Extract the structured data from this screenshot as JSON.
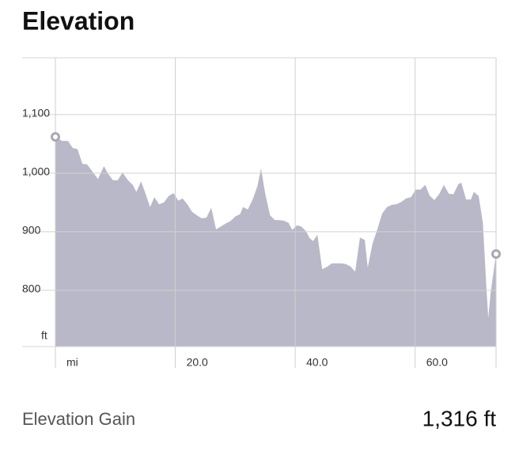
{
  "chart_data": {
    "type": "area",
    "title": "Elevation",
    "x_label": "mi",
    "y_label": "ft",
    "x": [
      0,
      1.1,
      2.1,
      2.9,
      3.7,
      4.5,
      5.3,
      6.1,
      7.1,
      8.1,
      8.8,
      9.6,
      10.4,
      11.2,
      12.1,
      12.9,
      13.5,
      14.3,
      15.0,
      15.8,
      16.5,
      17.3,
      18.1,
      18.9,
      19.7,
      20.5,
      21.2,
      22.0,
      22.8,
      23.6,
      24.4,
      25.2,
      26.0,
      26.8,
      27.6,
      28.4,
      29.2,
      30.0,
      30.8,
      31.3,
      32.1,
      32.9,
      33.7,
      34.3,
      35.0,
      35.8,
      36.6,
      37.3,
      38.1,
      38.9,
      39.5,
      40.3,
      41.0,
      41.8,
      42.4,
      43.0,
      43.7,
      44.5,
      45.3,
      46.1,
      46.9,
      47.7,
      48.4,
      49.2,
      50.0,
      50.8,
      51.6,
      52.1,
      52.9,
      53.7,
      54.5,
      55.3,
      56.1,
      56.9,
      57.7,
      58.5,
      59.3,
      60.1,
      60.9,
      61.7,
      62.4,
      63.2,
      64.0,
      64.8,
      65.6,
      66.4,
      67.2,
      67.7,
      68.5,
      69.3,
      69.8,
      70.6,
      71.3,
      71.9,
      72.2,
      72.6,
      73.5
    ],
    "values": [
      1062,
      1055,
      1055,
      1043,
      1041,
      1016,
      1015,
      1004,
      990,
      1012,
      999,
      988,
      988,
      1001,
      988,
      980,
      968,
      986,
      966,
      942,
      959,
      947,
      950,
      961,
      966,
      953,
      957,
      947,
      934,
      928,
      923,
      924,
      941,
      904,
      909,
      914,
      918,
      926,
      930,
      942,
      938,
      955,
      978,
      1008,
      965,
      928,
      920,
      920,
      919,
      915,
      903,
      911,
      909,
      901,
      889,
      884,
      895,
      836,
      840,
      846,
      846,
      846,
      845,
      841,
      832,
      890,
      886,
      839,
      880,
      904,
      931,
      942,
      946,
      947,
      951,
      957,
      959,
      972,
      972,
      980,
      962,
      954,
      964,
      980,
      965,
      964,
      981,
      984,
      955,
      955,
      968,
      961,
      915,
      803,
      753,
      796,
      862
    ],
    "color": "#b9b8c8",
    "xlim": [
      0,
      73.5
    ],
    "ylim": [
      704,
      1197
    ],
    "xticks": [
      {
        "value": 20,
        "label": "20.0"
      },
      {
        "value": 40,
        "label": "40.0"
      },
      {
        "value": 60,
        "label": "60.0"
      }
    ],
    "yticks": [
      800,
      900,
      {
        "value": 1000,
        "label": "1,000"
      },
      {
        "value": 1100,
        "label": "1,100"
      }
    ],
    "grid": true
  },
  "summary": {
    "label": "Elevation Gain",
    "value": "1,316 ft"
  }
}
